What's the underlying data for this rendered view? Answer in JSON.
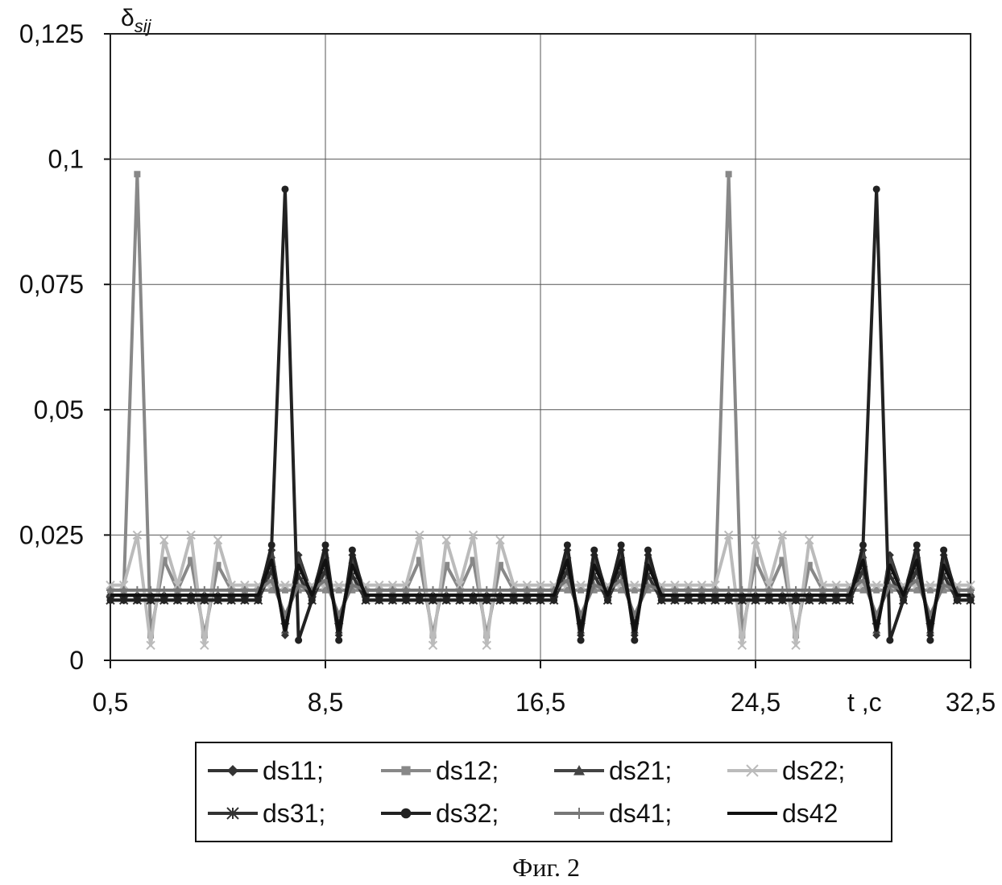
{
  "chart_data": {
    "type": "line",
    "y_label": "δ",
    "y_label_sub": "sij",
    "x_label": "t ,c",
    "caption": "Фиг. 2",
    "xlim": [
      0.5,
      32.5
    ],
    "xticks": [
      {
        "value": 0.5,
        "label": "0,5"
      },
      {
        "value": 8.5,
        "label": "8,5"
      },
      {
        "value": 16.5,
        "label": "16,5"
      },
      {
        "value": 24.5,
        "label": "24,5"
      },
      {
        "value": 32.5,
        "label": "32,5"
      }
    ],
    "ylim": [
      0,
      0.125
    ],
    "yticks": [
      0,
      {
        "value": 0.025,
        "label": "0,025"
      },
      {
        "value": 0.05,
        "label": "0,05"
      },
      {
        "value": 0.075,
        "label": "0,075"
      },
      {
        "value": 0.1,
        "label": "0,1"
      },
      {
        "value": 0.125,
        "label": "0,125"
      }
    ],
    "grid": true,
    "legend": "bottom",
    "x": [
      0.5,
      1,
      1.5,
      2,
      2.5,
      3,
      3.5,
      4,
      4.5,
      5,
      5.5,
      6,
      6.5,
      7,
      7.5,
      8,
      8.5,
      9,
      9.5,
      10,
      10.5,
      11,
      11.5,
      12,
      12.5,
      13,
      13.5,
      14,
      14.5,
      15,
      15.5,
      16,
      16.5,
      17,
      17.5,
      18,
      18.5,
      19,
      19.5,
      20,
      20.5,
      21,
      21.5,
      22,
      22.5,
      23,
      23.5,
      24,
      24.5,
      25,
      25.5,
      26,
      26.5,
      27,
      27.5,
      28,
      28.5,
      29,
      29.5,
      30,
      30.5,
      31,
      31.5,
      32,
      32.5
    ],
    "series": [
      {
        "name": "ds11;",
        "color": "#333333",
        "marker": "diamond",
        "values": [
          0.013,
          0.013,
          0.013,
          0.013,
          0.013,
          0.013,
          0.013,
          0.013,
          0.013,
          0.013,
          0.013,
          0.013,
          0.022,
          0.005,
          0.021,
          0.013,
          0.022,
          0.005,
          0.021,
          0.013,
          0.013,
          0.013,
          0.013,
          0.013,
          0.013,
          0.013,
          0.013,
          0.013,
          0.013,
          0.013,
          0.013,
          0.013,
          0.013,
          0.013,
          0.022,
          0.005,
          0.021,
          0.013,
          0.022,
          0.005,
          0.021,
          0.013,
          0.013,
          0.013,
          0.013,
          0.013,
          0.013,
          0.013,
          0.013,
          0.013,
          0.013,
          0.013,
          0.013,
          0.013,
          0.013,
          0.013,
          0.022,
          0.005,
          0.021,
          0.013,
          0.022,
          0.005,
          0.021,
          0.013,
          0.013
        ]
      },
      {
        "name": "ds12;",
        "color": "#888888",
        "marker": "square",
        "values": [
          0.014,
          0.014,
          0.097,
          0.005,
          0.02,
          0.014,
          0.02,
          0.005,
          0.019,
          0.014,
          0.014,
          0.014,
          0.014,
          0.014,
          0.014,
          0.014,
          0.014,
          0.014,
          0.014,
          0.014,
          0.014,
          0.014,
          0.014,
          0.02,
          0.005,
          0.019,
          0.014,
          0.02,
          0.005,
          0.019,
          0.014,
          0.014,
          0.014,
          0.014,
          0.014,
          0.014,
          0.014,
          0.014,
          0.014,
          0.014,
          0.014,
          0.014,
          0.014,
          0.014,
          0.014,
          0.014,
          0.097,
          0.005,
          0.02,
          0.014,
          0.02,
          0.005,
          0.019,
          0.014,
          0.014,
          0.014,
          0.014,
          0.014,
          0.014,
          0.014,
          0.014,
          0.014,
          0.014,
          0.014,
          0.014
        ]
      },
      {
        "name": "ds21;",
        "color": "#444444",
        "marker": "triangle",
        "values": [
          0.013,
          0.013,
          0.013,
          0.013,
          0.013,
          0.013,
          0.013,
          0.013,
          0.013,
          0.013,
          0.013,
          0.013,
          0.021,
          0.006,
          0.02,
          0.013,
          0.021,
          0.006,
          0.02,
          0.013,
          0.013,
          0.013,
          0.013,
          0.013,
          0.013,
          0.013,
          0.013,
          0.013,
          0.013,
          0.013,
          0.013,
          0.013,
          0.013,
          0.013,
          0.021,
          0.006,
          0.02,
          0.013,
          0.021,
          0.006,
          0.02,
          0.013,
          0.013,
          0.013,
          0.013,
          0.013,
          0.013,
          0.013,
          0.013,
          0.013,
          0.013,
          0.013,
          0.013,
          0.013,
          0.013,
          0.013,
          0.021,
          0.006,
          0.02,
          0.013,
          0.021,
          0.006,
          0.02,
          0.013,
          0.013
        ]
      },
      {
        "name": "ds22;",
        "color": "#bbbbbb",
        "marker": "x",
        "values": [
          0.015,
          0.015,
          0.025,
          0.003,
          0.024,
          0.015,
          0.025,
          0.003,
          0.024,
          0.015,
          0.015,
          0.015,
          0.015,
          0.015,
          0.015,
          0.015,
          0.015,
          0.015,
          0.015,
          0.015,
          0.015,
          0.015,
          0.015,
          0.025,
          0.003,
          0.024,
          0.015,
          0.025,
          0.003,
          0.024,
          0.015,
          0.015,
          0.015,
          0.015,
          0.015,
          0.015,
          0.015,
          0.015,
          0.015,
          0.015,
          0.015,
          0.015,
          0.015,
          0.015,
          0.015,
          0.015,
          0.025,
          0.003,
          0.024,
          0.015,
          0.025,
          0.003,
          0.024,
          0.015,
          0.015,
          0.015,
          0.015,
          0.015,
          0.015,
          0.015,
          0.015,
          0.015,
          0.015,
          0.015,
          0.015
        ]
      },
      {
        "name": "ds31;",
        "color": "#333333",
        "marker": "star",
        "values": [
          0.012,
          0.012,
          0.012,
          0.012,
          0.012,
          0.012,
          0.012,
          0.012,
          0.012,
          0.012,
          0.012,
          0.012,
          0.018,
          0.008,
          0.017,
          0.012,
          0.018,
          0.008,
          0.017,
          0.012,
          0.012,
          0.012,
          0.012,
          0.012,
          0.012,
          0.012,
          0.012,
          0.012,
          0.012,
          0.012,
          0.012,
          0.012,
          0.012,
          0.012,
          0.018,
          0.008,
          0.017,
          0.012,
          0.018,
          0.008,
          0.017,
          0.012,
          0.012,
          0.012,
          0.012,
          0.012,
          0.012,
          0.012,
          0.012,
          0.012,
          0.012,
          0.012,
          0.012,
          0.012,
          0.012,
          0.012,
          0.018,
          0.008,
          0.017,
          0.012,
          0.018,
          0.008,
          0.017,
          0.012,
          0.012
        ]
      },
      {
        "name": "ds32;",
        "color": "#222222",
        "marker": "circle",
        "values": [
          0.012,
          0.012,
          0.012,
          0.012,
          0.012,
          0.012,
          0.012,
          0.012,
          0.012,
          0.012,
          0.012,
          0.012,
          0.023,
          0.094,
          0.004,
          0.012,
          0.023,
          0.004,
          0.022,
          0.012,
          0.012,
          0.012,
          0.012,
          0.012,
          0.012,
          0.012,
          0.012,
          0.012,
          0.012,
          0.012,
          0.012,
          0.012,
          0.012,
          0.012,
          0.023,
          0.004,
          0.022,
          0.012,
          0.023,
          0.004,
          0.022,
          0.012,
          0.012,
          0.012,
          0.012,
          0.012,
          0.012,
          0.012,
          0.012,
          0.012,
          0.012,
          0.012,
          0.012,
          0.012,
          0.012,
          0.012,
          0.023,
          0.094,
          0.004,
          0.012,
          0.023,
          0.004,
          0.022,
          0.012,
          0.012
        ]
      },
      {
        "name": "ds41;",
        "color": "#777777",
        "marker": "plus",
        "values": [
          0.014,
          0.014,
          0.014,
          0.014,
          0.014,
          0.014,
          0.014,
          0.014,
          0.014,
          0.014,
          0.014,
          0.014,
          0.016,
          0.009,
          0.015,
          0.014,
          0.016,
          0.009,
          0.015,
          0.014,
          0.014,
          0.014,
          0.014,
          0.014,
          0.014,
          0.014,
          0.014,
          0.014,
          0.014,
          0.014,
          0.014,
          0.014,
          0.014,
          0.014,
          0.016,
          0.009,
          0.015,
          0.014,
          0.016,
          0.009,
          0.015,
          0.014,
          0.014,
          0.014,
          0.014,
          0.014,
          0.014,
          0.014,
          0.014,
          0.014,
          0.014,
          0.014,
          0.014,
          0.014,
          0.014,
          0.014,
          0.016,
          0.009,
          0.015,
          0.014,
          0.016,
          0.009,
          0.015,
          0.014,
          0.014
        ]
      },
      {
        "name": "ds42",
        "color": "#111111",
        "values": [
          0.013,
          0.013,
          0.013,
          0.013,
          0.013,
          0.013,
          0.013,
          0.013,
          0.013,
          0.013,
          0.013,
          0.013,
          0.02,
          0.006,
          0.019,
          0.013,
          0.02,
          0.006,
          0.019,
          0.013,
          0.013,
          0.013,
          0.013,
          0.013,
          0.013,
          0.013,
          0.013,
          0.013,
          0.013,
          0.013,
          0.013,
          0.013,
          0.013,
          0.013,
          0.02,
          0.006,
          0.019,
          0.013,
          0.02,
          0.006,
          0.019,
          0.013,
          0.013,
          0.013,
          0.013,
          0.013,
          0.013,
          0.013,
          0.013,
          0.013,
          0.013,
          0.013,
          0.013,
          0.013,
          0.013,
          0.013,
          0.02,
          0.006,
          0.019,
          0.013,
          0.02,
          0.006,
          0.019,
          0.013,
          0.013
        ]
      }
    ]
  }
}
